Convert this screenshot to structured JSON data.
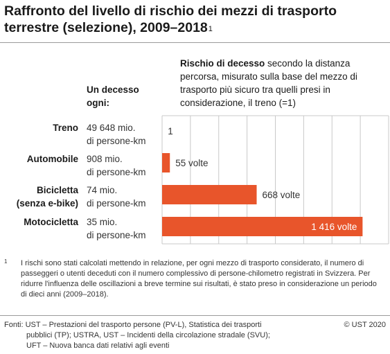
{
  "title": "Raffronto del livello di rischio dei mezzi di trasporto terrestre (selezione), 2009–2018",
  "title_footnote_mark": "1",
  "left_header": "Un decesso ogni:",
  "right_header_bold": "Rischio di decesso",
  "right_header_rest": " secondo la distanza percorsa, misurato sulla base del mezzo di trasporto più sicuro tra quelli presi in considerazione, il treno (=1)",
  "rows": [
    {
      "label_line1": "Treno",
      "label_line2": "",
      "value_line1": "49 648 mio.",
      "value_line2": "di persone-km"
    },
    {
      "label_line1": "Automobile",
      "label_line2": "",
      "value_line1": "908 mio.",
      "value_line2": "di persone-km"
    },
    {
      "label_line1": "Bicicletta",
      "label_line2": "(senza e-bike)",
      "value_line1": "74 mio.",
      "value_line2": "di persone-km"
    },
    {
      "label_line1": "Motocicletta",
      "label_line2": "",
      "value_line1": "35 mio.",
      "value_line2": "di persone-km"
    }
  ],
  "chart_data": {
    "type": "bar",
    "orientation": "horizontal",
    "categories": [
      "Treno",
      "Automobile",
      "Bicicletta (senza e-bike)",
      "Motocicletta"
    ],
    "values": [
      1,
      55,
      668,
      1416
    ],
    "data_labels": [
      "1",
      "55 volte",
      "668 volte",
      "1 416 volte"
    ],
    "xlim": [
      0,
      1600
    ],
    "grid": true,
    "bar_color": "#e8552b"
  },
  "footnote_mark": "1",
  "footnote": "I rischi sono stati calcolati mettendo in relazione, per ogni mezzo di trasporto considerato, il numero di passeggeri o utenti deceduti con il numero complessivo di persone-chilometro registrati in Svizzera. Per ridurre l'influenza delle oscillazioni a breve termine sui risultati, è stato preso in considerazione un periodo di dieci anni (2009–2018).",
  "sources_line1": "Fonti: UST – Prestazioni del trasporto persone (PV-L), Statistica dei trasporti",
  "sources_line2": "pubblici (TP); USTRA, UST – Incidenti della circolazione stradale (SVU);",
  "sources_line3": "UFT – Nuova banca dati relativi agli eventi",
  "copyright": "© UST 2020"
}
